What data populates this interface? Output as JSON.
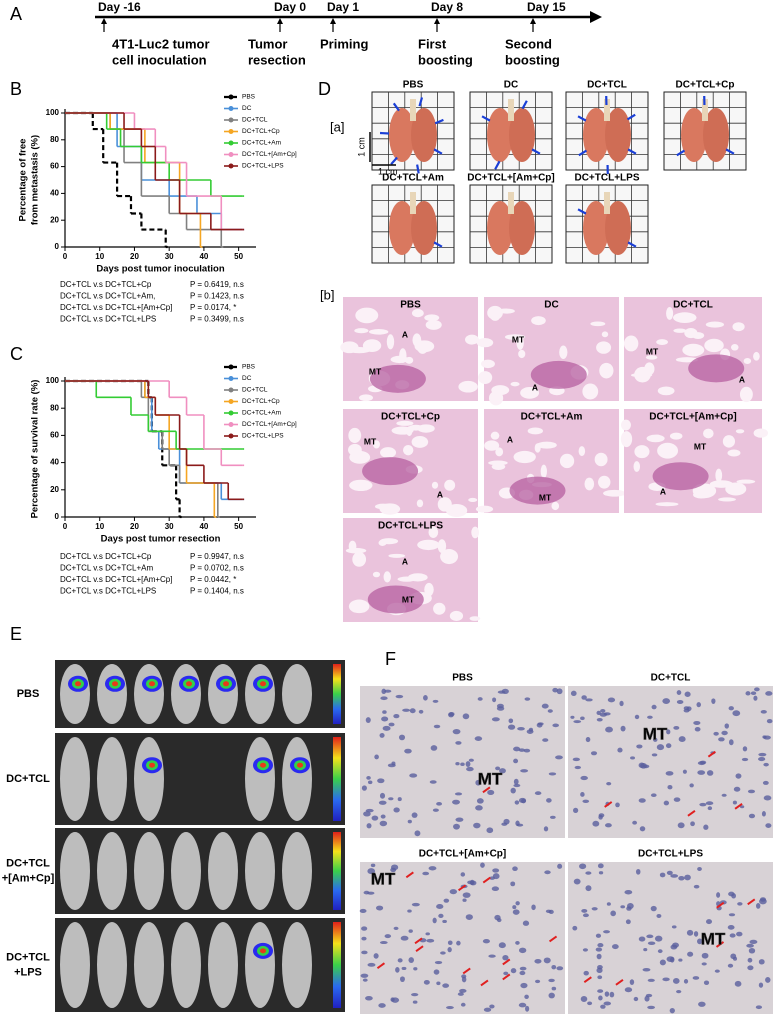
{
  "timeline": {
    "label": "A",
    "days": [
      "Day -16",
      "Day 0",
      "Day 1",
      "Day 8",
      "Day 15"
    ],
    "events": [
      [
        "4T1-Luc2 tumor",
        "cell inoculation"
      ],
      [
        "Tumor",
        "resection"
      ],
      [
        "Priming"
      ],
      [
        "First",
        "boosting"
      ],
      [
        "Second",
        "boosting"
      ]
    ]
  },
  "chart_data": [
    {
      "type": "step",
      "panel": "B",
      "y_label": [
        "Percentage of free",
        "from metastasis (%)"
      ],
      "x_label": "Days post tumor inoculation",
      "xlim": [
        0,
        55
      ],
      "xticks": [
        0,
        10,
        20,
        30,
        40,
        50
      ],
      "ylim": [
        0,
        100
      ],
      "yticks": [
        0,
        20,
        40,
        60,
        80,
        100
      ],
      "series": [
        {
          "name": "PBS",
          "color": "#000000",
          "dash": true,
          "x": [
            0,
            8,
            11,
            15,
            19,
            22,
            29
          ],
          "values": [
            100,
            88,
            63,
            38,
            25,
            13,
            0
          ]
        },
        {
          "name": "DC",
          "color": "#4a90d9",
          "x": [
            0,
            15,
            22,
            30,
            38,
            45,
            51
          ],
          "values": [
            100,
            75,
            50,
            38,
            25,
            13,
            13
          ]
        },
        {
          "name": "DC+TCL",
          "color": "#808080",
          "x": [
            0,
            13,
            17,
            22,
            30,
            35,
            45
          ],
          "values": [
            100,
            88,
            63,
            38,
            25,
            13,
            0
          ]
        },
        {
          "name": "DC+TCL+Cp",
          "color": "#f5a623",
          "x": [
            0,
            13,
            23,
            33,
            39
          ],
          "values": [
            100,
            88,
            63,
            25,
            0
          ]
        },
        {
          "name": "DC+TCL+Am",
          "color": "#33cc33",
          "x": [
            0,
            12,
            16,
            22,
            30,
            42,
            51
          ],
          "values": [
            100,
            88,
            75,
            63,
            50,
            38,
            38
          ]
        },
        {
          "name": "DC+TCL+[Am+Cp]",
          "color": "#f08fc0",
          "x": [
            0,
            20,
            26,
            29,
            35,
            45,
            51
          ],
          "values": [
            100,
            88,
            75,
            63,
            38,
            13,
            13
          ]
        },
        {
          "name": "DC+TCL+LPS",
          "color": "#8b1a1a",
          "x": [
            0,
            17,
            22,
            26,
            33,
            42,
            51
          ],
          "values": [
            100,
            88,
            75,
            50,
            25,
            13,
            13
          ]
        }
      ],
      "stats": [
        {
          "text": "DC+TCL v.s DC+TCL+Cp",
          "p": "P = 0.6419, n.s"
        },
        {
          "text": "DC+TCL v.s DC+TCL+Am,",
          "p": "P = 0.1423, n.s"
        },
        {
          "text": "DC+TCL v.s DC+TCL+[Am+Cp]",
          "p": "P = 0.0174, *"
        },
        {
          "text": "DC+TCL v.s DC+TCL+LPS",
          "p": "P = 0.3499, n.s"
        }
      ]
    },
    {
      "type": "step",
      "panel": "C",
      "y_label": [
        "Percentage of survival rate (%)"
      ],
      "x_label": "Days post tumor resection",
      "xlim": [
        0,
        55
      ],
      "xticks": [
        0,
        10,
        20,
        30,
        40,
        50
      ],
      "ylim": [
        0,
        100
      ],
      "yticks": [
        0,
        20,
        40,
        60,
        80,
        100
      ],
      "series": [
        {
          "name": "PBS",
          "color": "#000000",
          "dash": true,
          "x": [
            0,
            24,
            25,
            28,
            32,
            33
          ],
          "values": [
            100,
            88,
            63,
            38,
            13,
            0
          ]
        },
        {
          "name": "DC",
          "color": "#4a90d9",
          "x": [
            0,
            23,
            25,
            27,
            33,
            45,
            51
          ],
          "values": [
            100,
            88,
            63,
            50,
            25,
            13,
            13
          ]
        },
        {
          "name": "DC+TCL",
          "color": "#808080",
          "x": [
            0,
            22,
            24,
            28,
            30,
            33,
            44
          ],
          "values": [
            100,
            88,
            63,
            50,
            38,
            25,
            0
          ]
        },
        {
          "name": "DC+TCL+Cp",
          "color": "#f5a623",
          "x": [
            0,
            23,
            26,
            30,
            35,
            43
          ],
          "values": [
            100,
            88,
            75,
            50,
            25,
            0
          ]
        },
        {
          "name": "DC+TCL+Am",
          "color": "#33cc33",
          "x": [
            0,
            9,
            19,
            24,
            32,
            51
          ],
          "values": [
            100,
            88,
            75,
            63,
            50,
            50
          ]
        },
        {
          "name": "DC+TCL+[Am+Cp]",
          "color": "#f08fc0",
          "x": [
            0,
            30,
            35,
            40,
            45,
            51
          ],
          "values": [
            100,
            88,
            75,
            50,
            38,
            38
          ]
        },
        {
          "name": "DC+TCL+LPS",
          "color": "#8b1a1a",
          "x": [
            0,
            24,
            26,
            33,
            35,
            40,
            47,
            51
          ],
          "values": [
            100,
            88,
            75,
            50,
            38,
            25,
            13,
            13
          ]
        }
      ],
      "stats": [
        {
          "text": "DC+TCL v.s DC+TCL+Cp",
          "p": "P = 0.9947, n.s"
        },
        {
          "text": "DC+TCL v.s DC+TCL+Am",
          "p": "P = 0.0702, n.s"
        },
        {
          "text": "DC+TCL v.s DC+TCL+[Am+Cp]",
          "p": "P = 0.0442, *"
        },
        {
          "text": "DC+TCL v.s DC+TCL+LPS",
          "p": "P = 0.1404, n.s"
        }
      ]
    }
  ],
  "panel_d": {
    "label": "D",
    "sub_a": "[a]",
    "scale_v": "1 cm",
    "scale_h": "1 cm",
    "lungs": [
      "PBS",
      "DC",
      "DC+TCL",
      "DC+TCL+Cp",
      "DC+TCL+Am",
      "DC+TCL+[Am+Cp]",
      "DC+TCL+LPS"
    ],
    "sub_b": "[b]",
    "histology": [
      {
        "title": "PBS",
        "labels": [
          "A",
          "MT"
        ]
      },
      {
        "title": "DC",
        "labels": [
          "MT",
          "A"
        ]
      },
      {
        "title": "DC+TCL",
        "labels": [
          "MT",
          "A"
        ]
      },
      {
        "title": "DC+TCL+Cp",
        "labels": [
          "MT",
          "A"
        ]
      },
      {
        "title": "DC+TCL+Am",
        "labels": [
          "A",
          "MT"
        ]
      },
      {
        "title": "DC+TCL+[Am+Cp]",
        "labels": [
          "MT",
          "A"
        ]
      },
      {
        "title": "DC+TCL+LPS",
        "labels": [
          "A",
          "MT"
        ]
      }
    ]
  },
  "panel_e": {
    "label": "E",
    "rows": [
      [
        "PBS"
      ],
      [
        "DC+TCL"
      ],
      [
        "DC+TCL",
        "+[Am+Cp]"
      ],
      [
        "DC+TCL",
        "+LPS"
      ]
    ]
  },
  "panel_f": {
    "label": "F",
    "panels": [
      {
        "title": "PBS",
        "labels": [
          "MT"
        ]
      },
      {
        "title": "DC+TCL",
        "labels": [
          "MT"
        ]
      },
      {
        "title": "DC+TCL+[Am+Cp]",
        "labels": [
          "MT"
        ]
      },
      {
        "title": "DC+TCL+LPS",
        "labels": [
          "MT"
        ]
      }
    ]
  }
}
